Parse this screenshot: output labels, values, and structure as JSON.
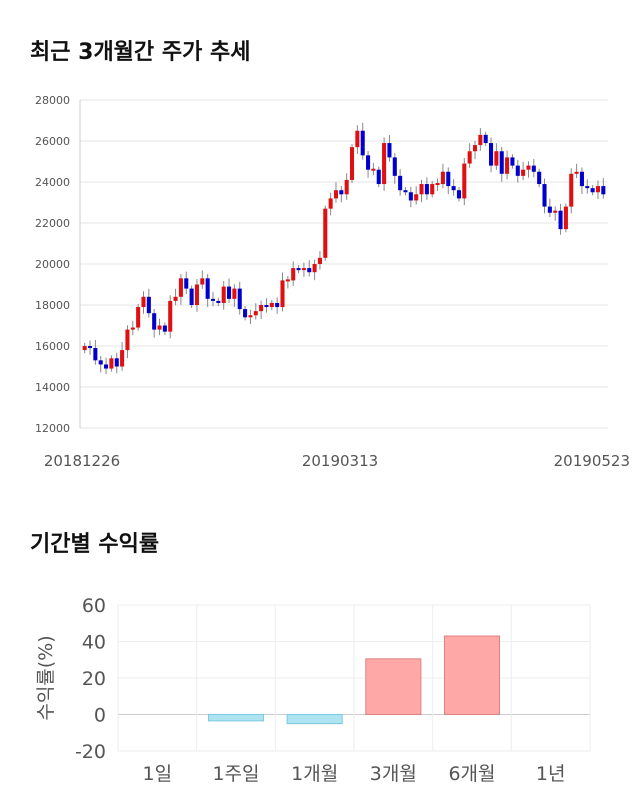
{
  "sections": {
    "price_title": "최근 3개월간 주가 추세",
    "return_title": "기간별 수익률"
  },
  "chart_data": [
    {
      "type": "candlestick",
      "title": "최근 3개월간 주가 추세",
      "ylim": [
        12000,
        28000
      ],
      "y_ticks": [
        12000,
        14000,
        16000,
        18000,
        20000,
        22000,
        24000,
        26000,
        28000
      ],
      "x_tick_labels": [
        "20181226",
        "20190313",
        "20190523"
      ],
      "grid": true,
      "colors": {
        "up": "#dd1111",
        "down": "#0000cc",
        "wick": "#888888",
        "grid": "#e5e5e5"
      },
      "closes": [
        16000,
        15900,
        15300,
        15100,
        14900,
        15400,
        15000,
        15800,
        16800,
        16900,
        17900,
        18400,
        17600,
        16800,
        17000,
        16700,
        18200,
        18400,
        19300,
        18800,
        18000,
        19000,
        19300,
        18300,
        18200,
        18100,
        18900,
        18300,
        18800,
        17800,
        17400,
        17500,
        17700,
        18000,
        17900,
        18100,
        17900,
        19200,
        19200,
        19800,
        19700,
        19800,
        19600,
        20000,
        20300,
        22700,
        23200,
        23600,
        23400,
        24100,
        25700,
        26500,
        25300,
        24600,
        24600,
        23900,
        25900,
        25200,
        24300,
        23600,
        23500,
        23100,
        23400,
        23900,
        23400,
        23900,
        23900,
        24500,
        23800,
        23600,
        23200,
        24900,
        25500,
        25800,
        26300,
        25900,
        24800,
        25500,
        24400,
        25200,
        24800,
        24300,
        24600,
        24800,
        24500,
        23900,
        22800,
        22500,
        22600,
        21700,
        22800,
        24400,
        24500,
        23800,
        23700,
        23500,
        23800,
        23400
      ]
    },
    {
      "type": "bar",
      "title": "기간별 수익률",
      "ylabel": "수익률(%)",
      "categories": [
        "1일",
        "1주일",
        "1개월",
        "3개월",
        "6개월",
        "1년"
      ],
      "values": [
        0,
        -3.5,
        -5.0,
        30.5,
        43.0,
        0
      ],
      "ylim": [
        -20,
        60
      ],
      "y_ticks": [
        -20,
        0,
        20,
        40,
        60
      ],
      "colors": {
        "positive": "#ffa8a8",
        "negative": "#aee4f2",
        "positive_edge": "#e08080",
        "negative_edge": "#7cc9e0"
      }
    }
  ]
}
